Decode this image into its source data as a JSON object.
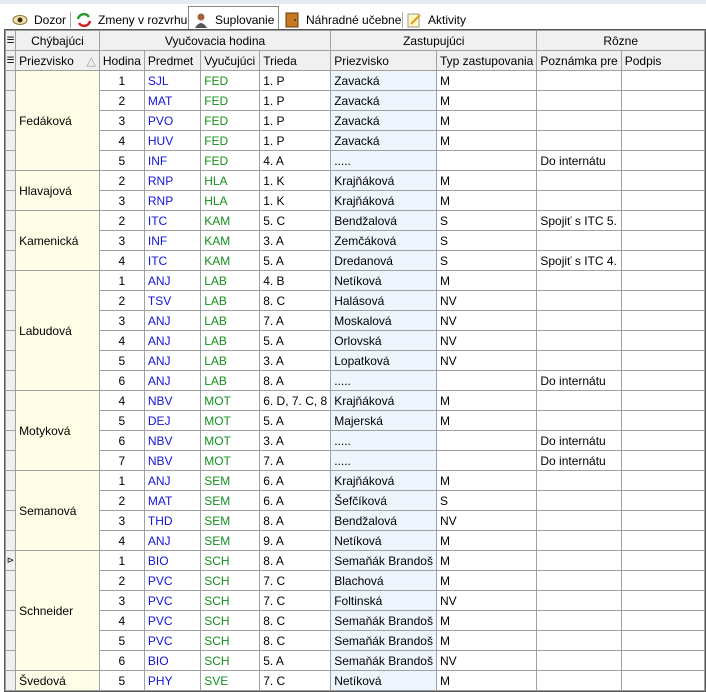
{
  "tabs": [
    {
      "label": "Dozor",
      "icon": "eye-icon"
    },
    {
      "label": "Zmeny v rozvrhu",
      "icon": "refresh-icon"
    },
    {
      "label": "Suplovanie",
      "icon": "person-icon",
      "active": true
    },
    {
      "label": "Náhradné učebne",
      "icon": "door-icon"
    },
    {
      "label": "Aktivity",
      "icon": "notepad-icon"
    }
  ],
  "groups": {
    "absent": "Chýbajúci",
    "lesson": "Vyučovacia hodina",
    "substitute": "Zastupujúci",
    "misc": "Rôzne"
  },
  "columns": {
    "absent_surname": "Priezvisko",
    "hour": "Hodina",
    "subject": "Predmet",
    "teacher": "Vyučujúci",
    "class": "Trieda",
    "sub_surname": "Priezvisko",
    "sub_type": "Typ zastupovania",
    "note": "Poznámka pre",
    "signature": "Podpis"
  },
  "sort_indicator": "△",
  "row_indicator": "⊳",
  "selected_row": 24,
  "absences": [
    {
      "name": "Fedáková",
      "rows": [
        [
          "1",
          "SJL",
          "FED",
          "1. P",
          "Zavacká",
          "M",
          ""
        ],
        [
          "2",
          "MAT",
          "FED",
          "1. P",
          "Zavacká",
          "M",
          ""
        ],
        [
          "3",
          "PVO",
          "FED",
          "1. P",
          "Zavacká",
          "M",
          ""
        ],
        [
          "4",
          "HUV",
          "FED",
          "1. P",
          "Zavacká",
          "M",
          ""
        ],
        [
          "5",
          "INF",
          "FED",
          "4. A",
          ".....",
          "",
          "Do internátu"
        ]
      ]
    },
    {
      "name": "Hlavajová",
      "rows": [
        [
          "2",
          "RNP",
          "HLA",
          "1. K",
          "Krajňáková",
          "M",
          ""
        ],
        [
          "3",
          "RNP",
          "HLA",
          "1. K",
          "Krajňáková",
          "M",
          ""
        ]
      ]
    },
    {
      "name": "Kamenická",
      "rows": [
        [
          "2",
          "ITC",
          "KAM",
          "5. C",
          "Bendžalová",
          "S",
          "Spojiť s  ITC  5."
        ],
        [
          "3",
          "INF",
          "KAM",
          "3. A",
          "Zemčáková",
          "S",
          ""
        ],
        [
          "4",
          "ITC",
          "KAM",
          "5. A",
          "Dredanová",
          "S",
          "Spojiť s  ITC  4."
        ]
      ]
    },
    {
      "name": "Labudová",
      "rows": [
        [
          "1",
          "ANJ",
          "LAB",
          "4. B",
          "Netíková",
          "M",
          ""
        ],
        [
          "2",
          "TSV",
          "LAB",
          "8. C",
          "Halásová",
          "NV",
          ""
        ],
        [
          "3",
          "ANJ",
          "LAB",
          "7. A",
          "Moskalová",
          "NV",
          ""
        ],
        [
          "4",
          "ANJ",
          "LAB",
          "5. A",
          "Orlovská",
          "NV",
          ""
        ],
        [
          "5",
          "ANJ",
          "LAB",
          "3. A",
          "Lopatková",
          "NV",
          ""
        ],
        [
          "6",
          "ANJ",
          "LAB",
          "8. A",
          ".....",
          "",
          "Do internátu"
        ]
      ]
    },
    {
      "name": "Motyková",
      "rows": [
        [
          "4",
          "NBV",
          "MOT",
          "6. D, 7. C, 8",
          "Krajňáková",
          "M",
          ""
        ],
        [
          "5",
          "DEJ",
          "MOT",
          "5. A",
          "Majerská",
          "M",
          ""
        ],
        [
          "6",
          "NBV",
          "MOT",
          "3. A",
          ".....",
          "",
          "Do internátu"
        ],
        [
          "7",
          "NBV",
          "MOT",
          "7. A",
          ".....",
          "",
          "Do internátu"
        ]
      ]
    },
    {
      "name": "Semanová",
      "rows": [
        [
          "1",
          "ANJ",
          "SEM",
          "6. A",
          "Krajňáková",
          "M",
          ""
        ],
        [
          "2",
          "MAT",
          "SEM",
          "6. A",
          "Šefčíková",
          "S",
          ""
        ],
        [
          "3",
          "THD",
          "SEM",
          "8. A",
          "Bendžalová",
          "NV",
          ""
        ],
        [
          "4",
          "ANJ",
          "SEM",
          "9. A",
          "Netíková",
          "M",
          ""
        ]
      ]
    },
    {
      "name": "Schneider",
      "rows": [
        [
          "1",
          "BIO",
          "SCH",
          "8. A",
          "Semaňák Brandoš",
          "M",
          ""
        ],
        [
          "2",
          "PVC",
          "SCH",
          "7. C",
          "Blachová",
          "M",
          ""
        ],
        [
          "3",
          "PVC",
          "SCH",
          "7. C",
          "Foltinská",
          "NV",
          ""
        ],
        [
          "4",
          "PVC",
          "SCH",
          "8. C",
          "Semaňák Brandoš",
          "M",
          ""
        ],
        [
          "5",
          "PVC",
          "SCH",
          "8. C",
          "Semaňák Brandoš",
          "M",
          ""
        ],
        [
          "6",
          "BIO",
          "SCH",
          "5. A",
          "Semaňák Brandoš",
          "NV",
          ""
        ]
      ]
    },
    {
      "name": "Švedová",
      "rows": [
        [
          "5",
          "PHY",
          "SVE",
          "7. C",
          "Netíková",
          "M",
          ""
        ]
      ]
    }
  ]
}
